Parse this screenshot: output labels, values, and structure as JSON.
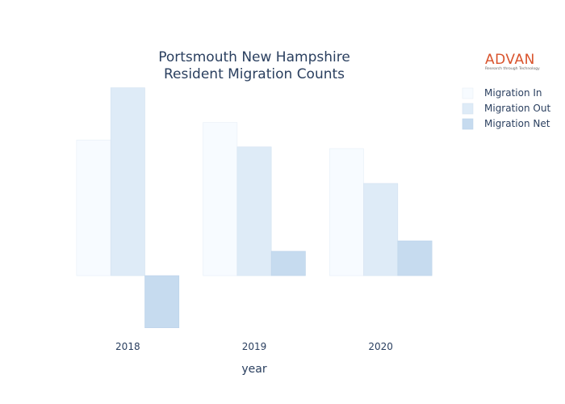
{
  "chart_data": {
    "type": "bar",
    "title_lines": [
      "Portsmouth New Hampshire",
      "Resident Migration Counts"
    ],
    "xlabel": "year",
    "ylabel": "",
    "categories": [
      "2018",
      "2019",
      "2020"
    ],
    "series": [
      {
        "name": "Migration In",
        "values": [
          3900,
          4400,
          3650
        ],
        "color": "#f7fbff",
        "stroke": "#e6eef7"
      },
      {
        "name": "Migration Out",
        "values": [
          5400,
          3700,
          2650
        ],
        "color": "#deebf7",
        "stroke": "#d3e2f1"
      },
      {
        "name": "Migration Net",
        "values": [
          -1500,
          700,
          1000
        ],
        "color": "#c6dbef",
        "stroke": "#bcd3ea"
      }
    ],
    "ylim": [
      -1600,
      5600
    ],
    "grid": false,
    "legend_position": "top-right"
  },
  "logo": {
    "word": "ADVAN",
    "tagline": "Research through Technology"
  }
}
